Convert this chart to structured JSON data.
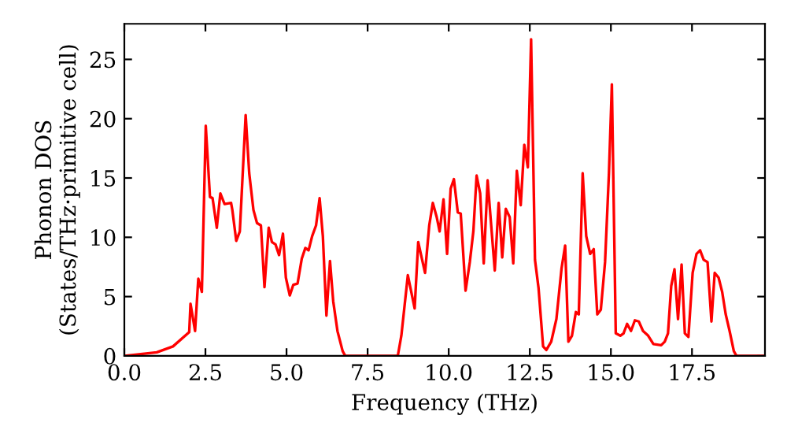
{
  "chart_data": {
    "type": "line",
    "xlabel": "Frequency (THz)",
    "ylabel": "Phonon DOS\n(States/THz·primitive cell)",
    "xlim": [
      0,
      19.75
    ],
    "ylim": [
      0,
      28
    ],
    "xticks": [
      {
        "value": 0,
        "label": "0.0"
      },
      {
        "value": 2.5,
        "label": "2.5"
      },
      {
        "value": 5,
        "label": "5.0"
      },
      {
        "value": 7.5,
        "label": "7.5"
      },
      {
        "value": 10,
        "label": "10.0"
      },
      {
        "value": 12.5,
        "label": "12.5"
      },
      {
        "value": 15,
        "label": "15.0"
      },
      {
        "value": 17.5,
        "label": "17.5"
      }
    ],
    "yticks": [
      0,
      5,
      10,
      15,
      20,
      25
    ],
    "grid": false,
    "legend": false,
    "marker": "none",
    "line_style": "solid",
    "series": [
      {
        "color": "#ff0000",
        "x": [
          0,
          1.0,
          1.5,
          2.0,
          2.04,
          2.18,
          2.28,
          2.39,
          2.51,
          2.64,
          2.72,
          2.85,
          2.96,
          3.09,
          3.29,
          3.33,
          3.45,
          3.56,
          3.74,
          3.85,
          3.98,
          4.09,
          4.21,
          4.32,
          4.45,
          4.55,
          4.66,
          4.77,
          4.89,
          4.98,
          5.1,
          5.21,
          5.34,
          5.47,
          5.58,
          5.68,
          5.79,
          5.91,
          6.02,
          6.12,
          6.23,
          6.34,
          6.44,
          6.57,
          6.73,
          6.81,
          8.43,
          8.54,
          8.74,
          8.95,
          9.06,
          9.27,
          9.4,
          9.51,
          9.63,
          9.72,
          9.84,
          9.95,
          10.06,
          10.16,
          10.28,
          10.37,
          10.52,
          10.65,
          10.76,
          10.86,
          10.97,
          11.08,
          11.2,
          11.31,
          11.42,
          11.54,
          11.65,
          11.76,
          11.88,
          11.99,
          12.1,
          12.22,
          12.33,
          12.44,
          12.54,
          12.66,
          12.77,
          12.91,
          13.01,
          13.16,
          13.32,
          13.48,
          13.59,
          13.69,
          13.8,
          13.92,
          14.01,
          14.13,
          14.24,
          14.36,
          14.47,
          14.58,
          14.69,
          14.82,
          14.94,
          15.03,
          15.15,
          15.29,
          15.39,
          15.5,
          15.62,
          15.74,
          15.86,
          15.99,
          16.15,
          16.31,
          16.55,
          16.66,
          16.76,
          16.86,
          16.96,
          17.07,
          17.18,
          17.28,
          17.39,
          17.52,
          17.64,
          17.75,
          17.86,
          17.98,
          18.1,
          18.2,
          18.32,
          18.43,
          18.54,
          18.66,
          18.79,
          18.87,
          19.75
        ],
        "values": [
          0,
          0.3,
          0.8,
          2.0,
          4.4,
          2.1,
          6.5,
          5.4,
          19.4,
          13.4,
          13.3,
          10.8,
          13.7,
          12.8,
          12.9,
          12.3,
          9.7,
          10.5,
          20.3,
          15.4,
          12.3,
          11.2,
          11.0,
          5.8,
          10.8,
          9.6,
          9.4,
          8.5,
          10.3,
          6.6,
          5.1,
          6.0,
          6.1,
          8.2,
          9.1,
          8.9,
          10.1,
          11.0,
          13.3,
          10.1,
          3.4,
          8.0,
          4.6,
          2.1,
          0.4,
          0,
          0,
          1.7,
          6.8,
          4.0,
          9.6,
          7.0,
          11.0,
          12.9,
          11.7,
          10.5,
          13.2,
          8.6,
          14.1,
          14.9,
          12.1,
          12.0,
          5.5,
          7.9,
          10.5,
          15.2,
          13.7,
          7.8,
          14.8,
          11.0,
          7.2,
          12.9,
          8.3,
          12.4,
          11.7,
          7.8,
          15.6,
          12.7,
          17.8,
          15.9,
          26.7,
          8.1,
          5.7,
          0.8,
          0.5,
          1.2,
          3.1,
          7.4,
          9.3,
          1.2,
          1.7,
          3.7,
          3.5,
          15.4,
          10.1,
          8.6,
          9.0,
          3.5,
          3.9,
          7.9,
          15.4,
          22.9,
          1.9,
          1.7,
          1.9,
          2.7,
          2.1,
          3.0,
          2.9,
          2.1,
          1.7,
          1.0,
          0.9,
          1.2,
          1.9,
          5.9,
          7.3,
          3.1,
          7.7,
          1.9,
          1.6,
          7.0,
          8.6,
          8.9,
          8.1,
          7.9,
          2.9,
          7.0,
          6.6,
          5.4,
          3.5,
          2.1,
          0.4,
          0,
          0
        ]
      }
    ]
  }
}
